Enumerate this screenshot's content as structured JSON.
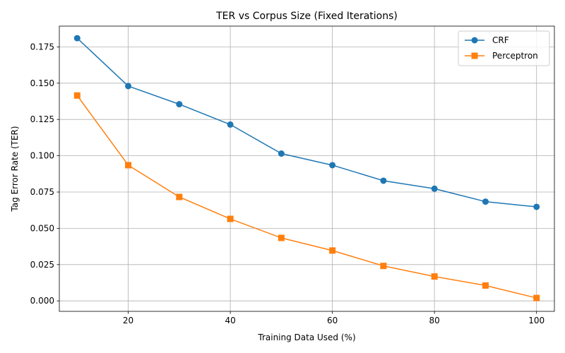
{
  "chart_data": {
    "type": "line",
    "title": "TER vs Corpus Size (Fixed Iterations)",
    "xlabel": "Training Data Used (%)",
    "ylabel": "Tag Error Rate (TER)",
    "x": [
      10,
      20,
      30,
      40,
      50,
      60,
      70,
      80,
      90,
      100
    ],
    "xlim": [
      6.5,
      103.5
    ],
    "ylim": [
      -0.0072,
      0.1893
    ],
    "xticks": [
      20,
      40,
      60,
      80,
      100
    ],
    "xtick_labels": [
      "20",
      "40",
      "60",
      "80",
      "100"
    ],
    "yticks": [
      0.0,
      0.025,
      0.05,
      0.075,
      0.1,
      0.125,
      0.15,
      0.175
    ],
    "ytick_labels": [
      "0.000",
      "0.025",
      "0.050",
      "0.075",
      "0.100",
      "0.125",
      "0.150",
      "0.175"
    ],
    "grid": true,
    "legend_position": "top-right",
    "series": [
      {
        "name": "CRF",
        "color": "#1f77b4",
        "marker": "circle",
        "values": [
          0.181,
          0.148,
          0.1355,
          0.1215,
          0.1015,
          0.0935,
          0.0828,
          0.0773,
          0.0684,
          0.0648
        ]
      },
      {
        "name": "Perceptron",
        "color": "#ff7f0e",
        "marker": "square",
        "values": [
          0.1415,
          0.0935,
          0.0716,
          0.0565,
          0.0434,
          0.0347,
          0.0241,
          0.0168,
          0.0106,
          0.002
        ]
      }
    ]
  }
}
